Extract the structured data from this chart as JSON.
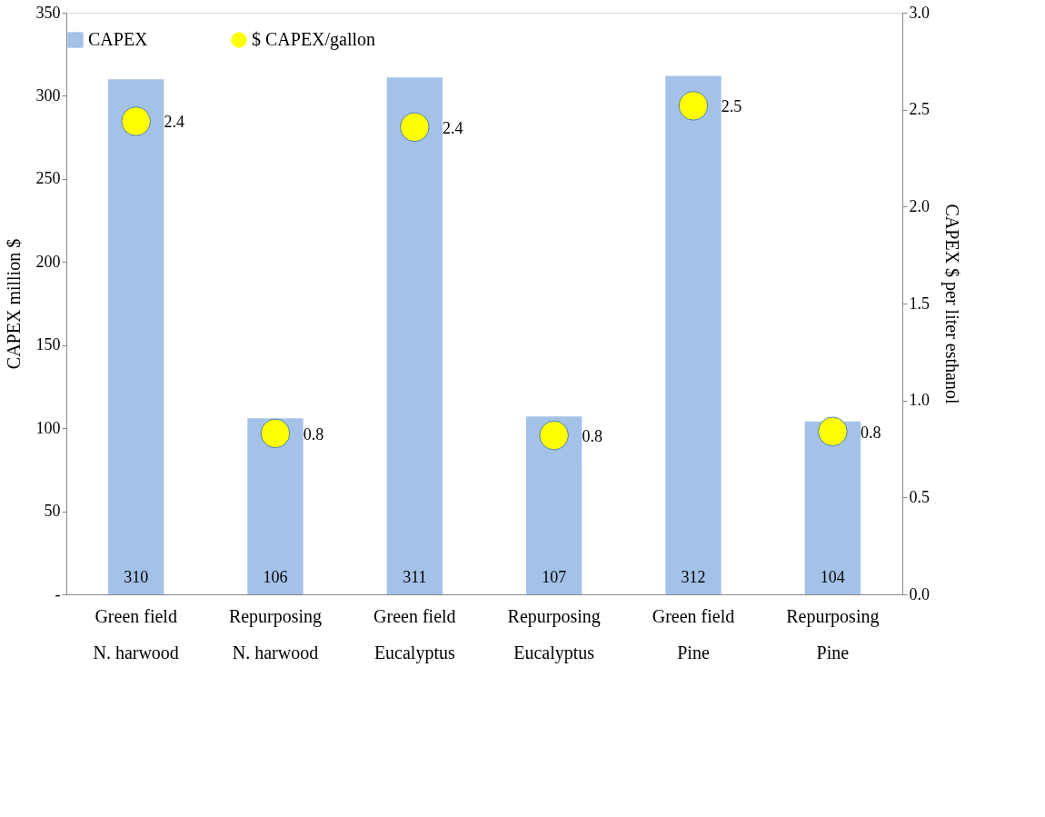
{
  "chart_data": {
    "type": "bar",
    "categories": [
      "Green field\nN. harwood",
      "Repurposing\nN. harwood",
      "Green field\nEucalyptus",
      "Repurposing\nEucalyptus",
      "Green field\nPine",
      "Repurposing\nPine"
    ],
    "series": [
      {
        "name": "CAPEX",
        "color": "#a4c2e8",
        "values": [
          310,
          106,
          311,
          107,
          312,
          104
        ]
      },
      {
        "name": "$ CAPEX/gallon",
        "type": "scatter",
        "axis": "y2",
        "color": "#ffff00",
        "marker": "circle",
        "values": [
          2.44,
          0.83,
          2.41,
          0.82,
          2.52,
          0.84
        ],
        "value_labels": [
          "2.4",
          "0.8",
          "2.4",
          "0.8",
          "2.5",
          "0.8"
        ]
      }
    ],
    "data_labels": true,
    "ylabel": "CAPEX million $",
    "y2label": "CAPEX $ per liter esthanol",
    "ylim": [
      0,
      350
    ],
    "yticks": [
      {
        "value": 0,
        "label": "-"
      },
      50,
      100,
      150,
      200,
      250,
      300,
      350
    ],
    "y2lim": [
      0,
      3.0
    ],
    "y2ticks": [
      {
        "value": 0,
        "label": "0.0"
      },
      {
        "value": 0.5,
        "label": "0.5"
      },
      {
        "value": 1,
        "label": "1.0"
      },
      {
        "value": 1.5,
        "label": "1.5"
      },
      {
        "value": 2,
        "label": "2.0"
      },
      {
        "value": 2.5,
        "label": "2.5"
      },
      {
        "value": 3,
        "label": "3.0"
      }
    ],
    "grid": false,
    "legend": "top"
  }
}
